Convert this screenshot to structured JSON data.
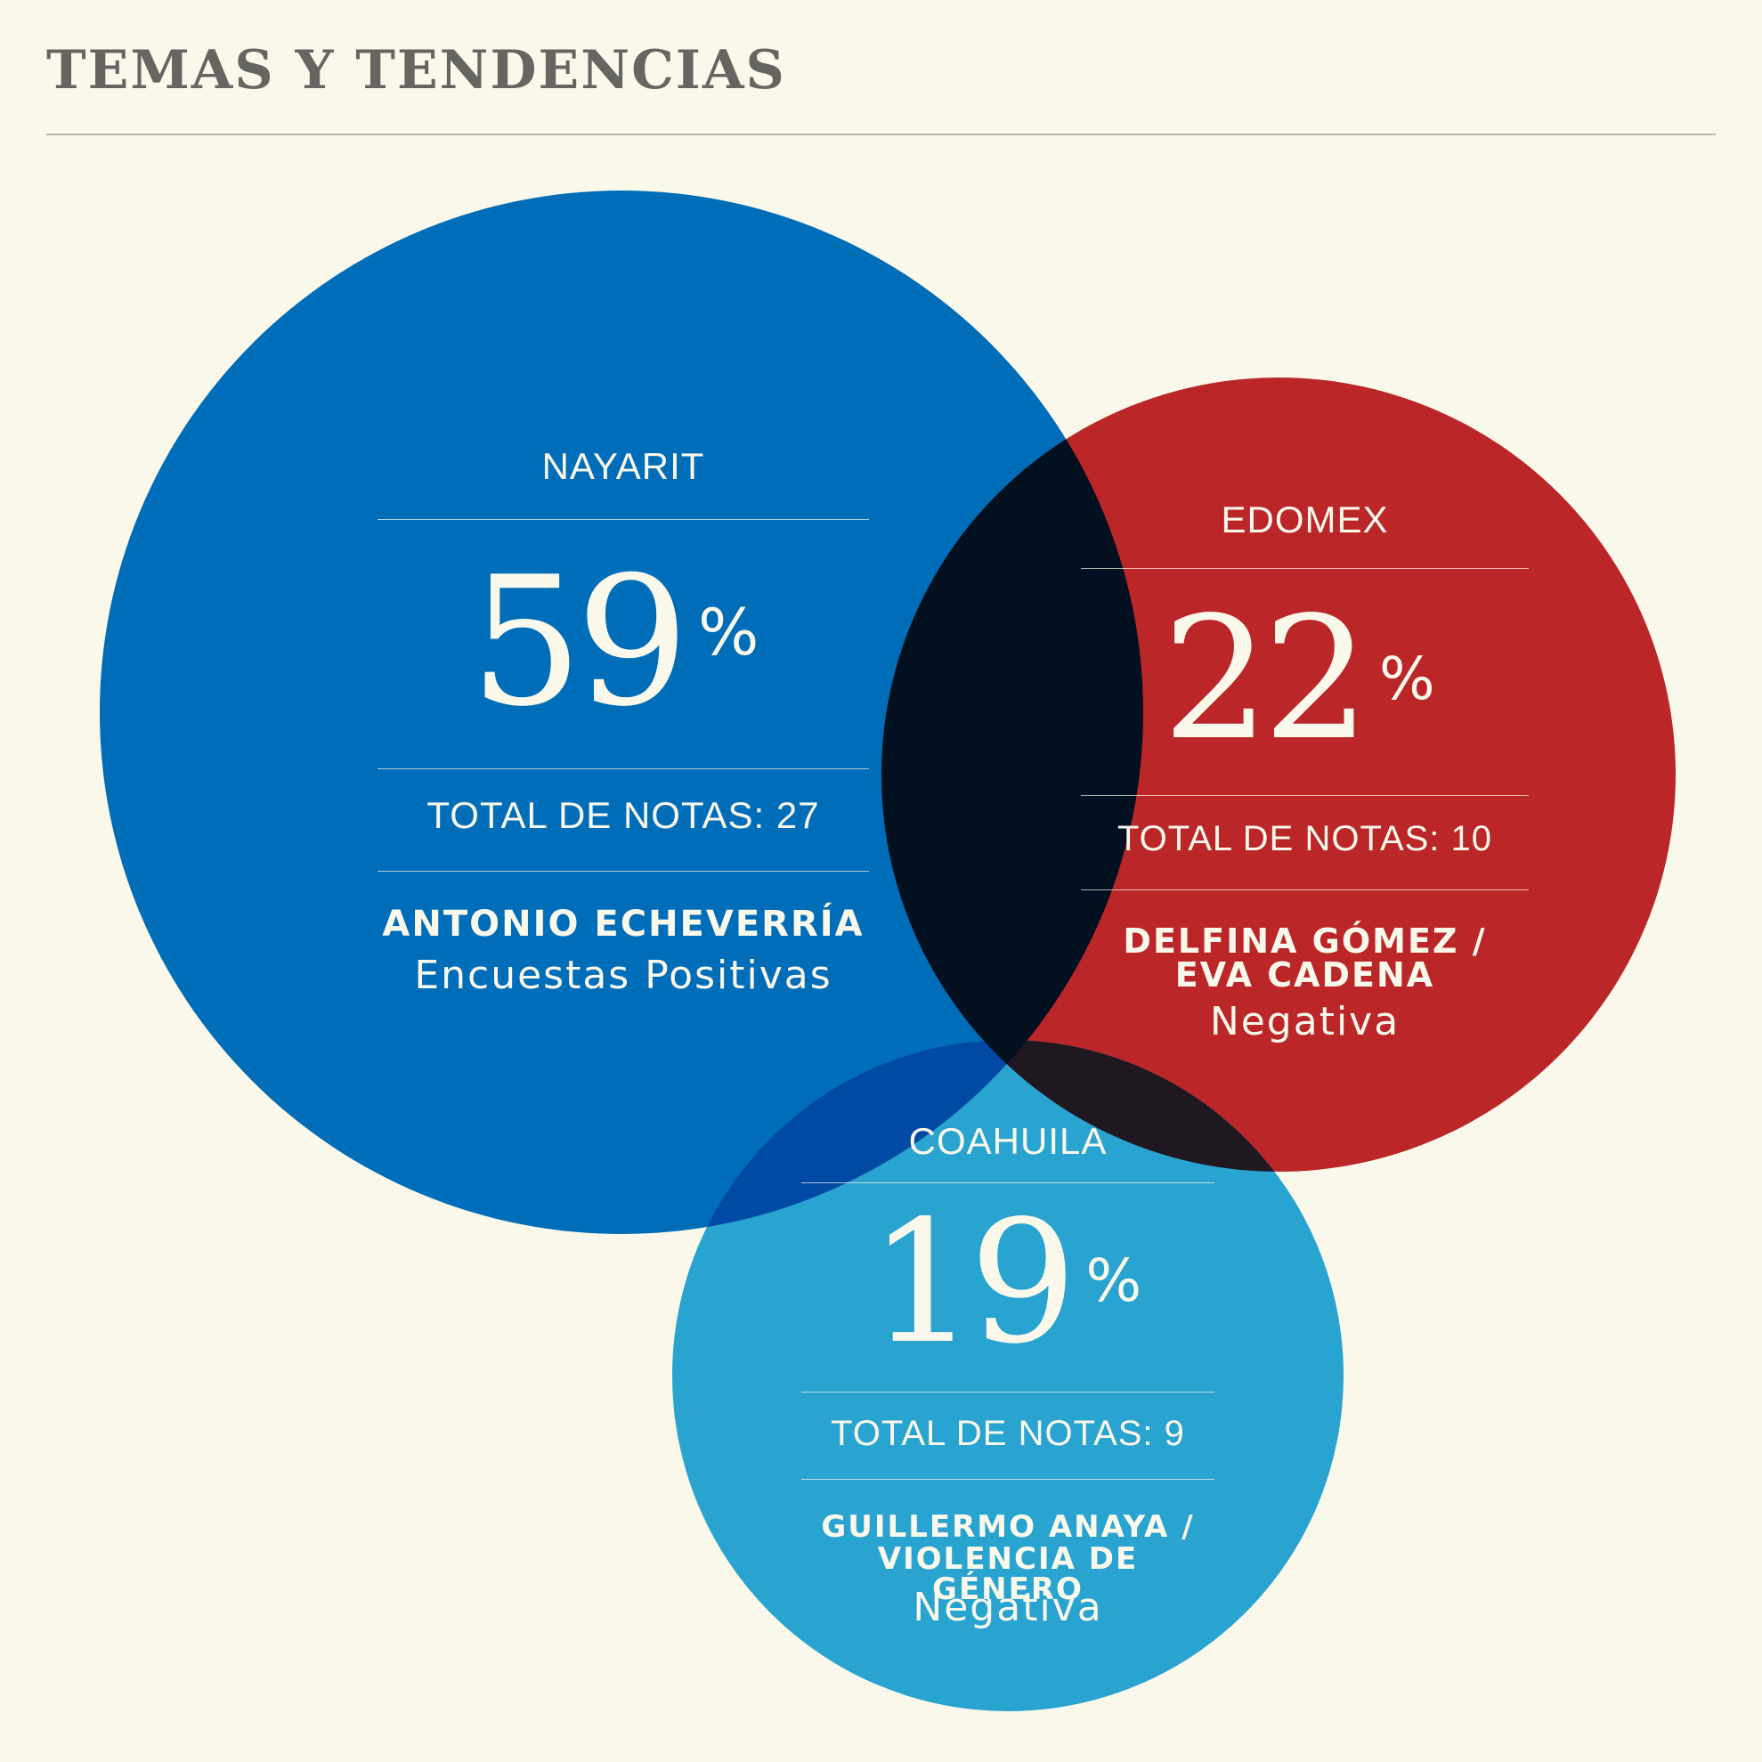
{
  "title": "TEMAS Y TENDENCIAS",
  "colors": {
    "background": "#faf8ea",
    "nayarit": "#006db8",
    "edomex": "#bb2629",
    "coahuila": "#29a3cf",
    "overlap_nayarit_edomex": "#021020",
    "overlap_nayarit_coahuila": "#004aa5",
    "overlap_edomex_coahuila": "#201820",
    "text": "#faf8ea",
    "title": "#666562"
  },
  "chart_data": {
    "type": "venn",
    "circles": [
      {
        "id": "nayarit",
        "region": "NAYARIT",
        "percent": "59",
        "percent_sign": "%",
        "total_label": "TOTAL DE NOTAS: 27",
        "total_notes": 27,
        "subject_line1": "ANTONIO ECHEVERRÍA",
        "subject_line2": "",
        "sentiment": "Encuestas Positivas"
      },
      {
        "id": "edomex",
        "region": "EDOMEX",
        "percent": "22",
        "percent_sign": "%",
        "total_label": "TOTAL DE NOTAS: 10",
        "total_notes": 10,
        "subject_line1": "DELFINA GÓMEZ /",
        "subject_line2": "EVA CADENA",
        "sentiment": "Negativa"
      },
      {
        "id": "coahuila",
        "region": "COAHUILA",
        "percent": "19",
        "percent_sign": "%",
        "total_label": "TOTAL DE NOTAS: 9",
        "total_notes": 9,
        "subject_line1": "GUILLERMO ANAYA /",
        "subject_line2": "VIOLENCIA DE GÉNERO",
        "sentiment": "Negativa"
      }
    ]
  }
}
